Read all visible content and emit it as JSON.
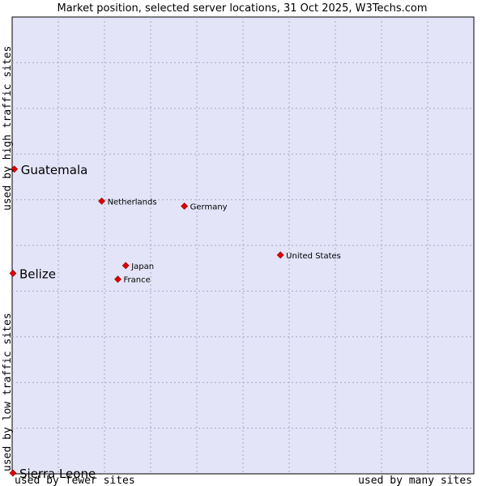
{
  "chart_data": {
    "type": "scatter",
    "title": "Market position, selected server locations, 31 Oct 2025, W3Techs.com",
    "xlabel_left": "used by fewer sites",
    "xlabel_right": "used by many sites",
    "ylabel_top": "used by high traffic sites",
    "ylabel_bottom": "used by low traffic sites",
    "xlim": [
      0,
      100
    ],
    "ylim": [
      0,
      100
    ],
    "grid": true,
    "colors": {
      "plot_bg": "#e4e4f8",
      "grid": "#a8a8c0",
      "point": "#e00000",
      "point_edge": "#880000"
    },
    "points": [
      {
        "name": "Guatemala",
        "x": 0.3,
        "y": 66.7,
        "highlight": true
      },
      {
        "name": "Belize",
        "x": 0.0,
        "y": 43.9,
        "highlight": true
      },
      {
        "name": "Sierra Leone",
        "x": 0.0,
        "y": 0.0,
        "highlight": true
      },
      {
        "name": "Netherlands",
        "x": 19.4,
        "y": 59.7,
        "highlight": false
      },
      {
        "name": "Germany",
        "x": 37.3,
        "y": 58.6,
        "highlight": false
      },
      {
        "name": "United States",
        "x": 58.1,
        "y": 47.9,
        "highlight": false
      },
      {
        "name": "Japan",
        "x": 24.6,
        "y": 45.6,
        "highlight": false
      },
      {
        "name": "France",
        "x": 22.9,
        "y": 42.6,
        "highlight": false
      }
    ]
  }
}
